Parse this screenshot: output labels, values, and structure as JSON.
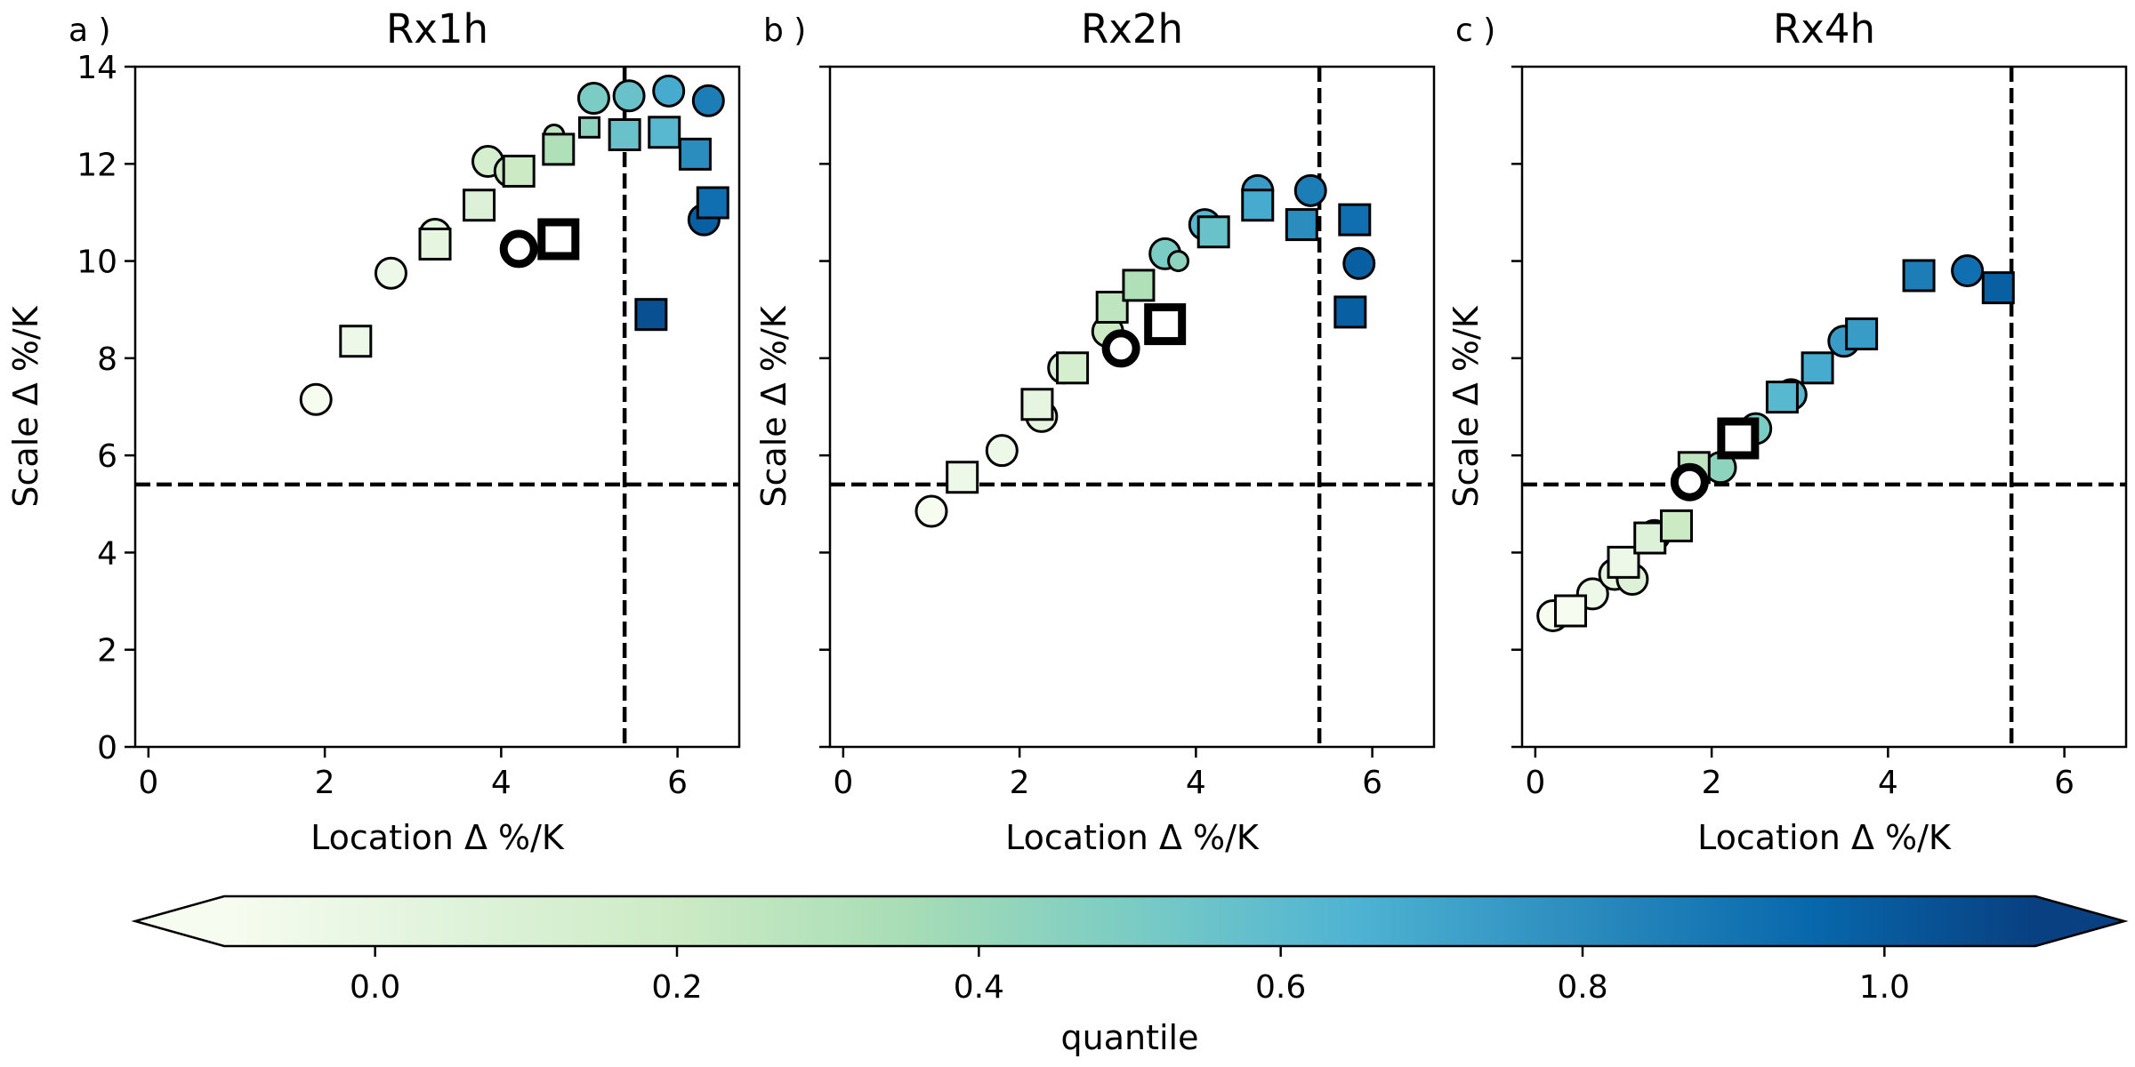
{
  "chart_data": [
    {
      "type": "scatter",
      "panel_label": "a )",
      "title": "Rx1h",
      "xlabel": "Location Δ %/K",
      "ylabel": "Scale Δ %/K",
      "xlim": [
        -0.15,
        6.7
      ],
      "ylim": [
        0,
        14
      ],
      "xticks": [
        "0",
        "2",
        "4",
        "6"
      ],
      "yticks": [
        "0",
        "2",
        "4",
        "6",
        "8",
        "10",
        "12",
        "14"
      ],
      "reference_lines": {
        "x": 5.4,
        "y": 5.4
      },
      "series": [
        {
          "marker": "circle",
          "points": [
            {
              "x": 1.9,
              "y": 7.15,
              "q": 0.0
            },
            {
              "x": 2.75,
              "y": 9.75,
              "q": 0.05
            },
            {
              "x": 3.25,
              "y": 10.55,
              "q": 0.1
            },
            {
              "x": 3.85,
              "y": 12.05,
              "q": 0.2
            },
            {
              "x": 4.1,
              "y": 11.85,
              "q": 0.25
            },
            {
              "x": 4.6,
              "y": 12.6,
              "q": 0.3,
              "size": "small"
            },
            {
              "x": 5.05,
              "y": 13.35,
              "q": 0.5
            },
            {
              "x": 5.45,
              "y": 13.4,
              "q": 0.55
            },
            {
              "x": 5.9,
              "y": 13.5,
              "q": 0.65
            },
            {
              "x": 6.35,
              "y": 13.3,
              "q": 0.8
            },
            {
              "x": 6.3,
              "y": 10.85,
              "q": 0.9
            }
          ]
        },
        {
          "marker": "square",
          "points": [
            {
              "x": 2.35,
              "y": 8.35,
              "q": 0.05
            },
            {
              "x": 3.25,
              "y": 10.35,
              "q": 0.1
            },
            {
              "x": 3.75,
              "y": 11.15,
              "q": 0.15
            },
            {
              "x": 4.2,
              "y": 11.85,
              "q": 0.25
            },
            {
              "x": 4.65,
              "y": 12.3,
              "q": 0.35
            },
            {
              "x": 5.0,
              "y": 12.75,
              "q": 0.45,
              "size": "small"
            },
            {
              "x": 5.4,
              "y": 12.6,
              "q": 0.55
            },
            {
              "x": 5.85,
              "y": 12.65,
              "q": 0.6
            },
            {
              "x": 6.2,
              "y": 12.2,
              "q": 0.75
            },
            {
              "x": 6.4,
              "y": 11.2,
              "q": 0.85
            },
            {
              "x": 5.7,
              "y": 8.9,
              "q": 0.95
            }
          ]
        },
        {
          "marker": "circle",
          "highlight": true,
          "points": [
            {
              "x": 4.2,
              "y": 10.25
            }
          ]
        },
        {
          "marker": "square",
          "highlight": true,
          "points": [
            {
              "x": 4.65,
              "y": 10.45
            }
          ]
        }
      ]
    },
    {
      "type": "scatter",
      "panel_label": "b )",
      "title": "Rx2h",
      "xlabel": "Location Δ %/K",
      "ylabel": "Scale Δ %/K",
      "xlim": [
        -0.15,
        6.7
      ],
      "ylim": [
        0,
        14
      ],
      "xticks": [
        "0",
        "2",
        "4",
        "6"
      ],
      "yticks": [
        "0",
        "2",
        "4",
        "6",
        "8",
        "10",
        "12",
        "14"
      ],
      "reference_lines": {
        "x": 5.4,
        "y": 5.4
      },
      "series": [
        {
          "marker": "circle",
          "points": [
            {
              "x": 1.0,
              "y": 4.85,
              "q": 0.0
            },
            {
              "x": 1.8,
              "y": 6.1,
              "q": 0.05
            },
            {
              "x": 2.25,
              "y": 6.8,
              "q": 0.1
            },
            {
              "x": 2.5,
              "y": 7.8,
              "q": 0.15
            },
            {
              "x": 3.0,
              "y": 8.55,
              "q": 0.25
            },
            {
              "x": 3.65,
              "y": 10.15,
              "q": 0.5
            },
            {
              "x": 3.8,
              "y": 10.0,
              "q": 0.45,
              "size": "small"
            },
            {
              "x": 4.1,
              "y": 10.75,
              "q": 0.6
            },
            {
              "x": 4.7,
              "y": 11.45,
              "q": 0.7
            },
            {
              "x": 5.3,
              "y": 11.45,
              "q": 0.8
            },
            {
              "x": 5.85,
              "y": 9.95,
              "q": 0.9
            }
          ]
        },
        {
          "marker": "square",
          "points": [
            {
              "x": 1.35,
              "y": 5.55,
              "q": 0.05
            },
            {
              "x": 2.2,
              "y": 7.05,
              "q": 0.1
            },
            {
              "x": 2.6,
              "y": 7.8,
              "q": 0.2
            },
            {
              "x": 3.05,
              "y": 9.05,
              "q": 0.3
            },
            {
              "x": 3.35,
              "y": 9.5,
              "q": 0.35
            },
            {
              "x": 4.2,
              "y": 10.6,
              "q": 0.55
            },
            {
              "x": 4.7,
              "y": 11.15,
              "q": 0.65
            },
            {
              "x": 5.2,
              "y": 10.75,
              "q": 0.75
            },
            {
              "x": 5.8,
              "y": 10.85,
              "q": 0.85
            },
            {
              "x": 5.75,
              "y": 8.95,
              "q": 0.9
            }
          ]
        },
        {
          "marker": "circle",
          "highlight": true,
          "points": [
            {
              "x": 3.15,
              "y": 8.2
            }
          ]
        },
        {
          "marker": "square",
          "highlight": true,
          "points": [
            {
              "x": 3.65,
              "y": 8.7
            }
          ]
        }
      ]
    },
    {
      "type": "scatter",
      "panel_label": "c )",
      "title": "Rx4h",
      "xlabel": "Location Δ %/K",
      "ylabel": "Scale Δ %/K",
      "xlim": [
        -0.15,
        6.7
      ],
      "ylim": [
        0,
        14
      ],
      "xticks": [
        "0",
        "2",
        "4",
        "6"
      ],
      "yticks": [
        "0",
        "2",
        "4",
        "6",
        "8",
        "10",
        "12",
        "14"
      ],
      "reference_lines": {
        "x": 5.4,
        "y": 5.4
      },
      "series": [
        {
          "marker": "circle",
          "points": [
            {
              "x": 0.2,
              "y": 2.7,
              "q": 0.0
            },
            {
              "x": 0.65,
              "y": 3.15,
              "q": 0.05
            },
            {
              "x": 0.9,
              "y": 3.55,
              "q": 0.1
            },
            {
              "x": 1.1,
              "y": 3.45,
              "q": 0.15
            },
            {
              "x": 1.35,
              "y": 4.35,
              "q": 0.2
            },
            {
              "x": 2.1,
              "y": 5.75,
              "q": 0.45
            },
            {
              "x": 2.5,
              "y": 6.55,
              "q": 0.5
            },
            {
              "x": 2.9,
              "y": 7.25,
              "q": 0.6
            },
            {
              "x": 3.5,
              "y": 8.35,
              "q": 0.7
            },
            {
              "x": 4.9,
              "y": 9.8,
              "q": 0.85
            }
          ]
        },
        {
          "marker": "square",
          "points": [
            {
              "x": 0.4,
              "y": 2.8,
              "q": 0.0
            },
            {
              "x": 1.0,
              "y": 3.8,
              "q": 0.05
            },
            {
              "x": 1.3,
              "y": 4.3,
              "q": 0.15
            },
            {
              "x": 1.6,
              "y": 4.55,
              "q": 0.25
            },
            {
              "x": 1.8,
              "y": 5.75,
              "q": 0.3
            },
            {
              "x": 2.3,
              "y": 6.25,
              "q": 0.4,
              "size": "small"
            },
            {
              "x": 2.8,
              "y": 7.2,
              "q": 0.6
            },
            {
              "x": 3.2,
              "y": 7.8,
              "q": 0.65
            },
            {
              "x": 3.7,
              "y": 8.5,
              "q": 0.7
            },
            {
              "x": 4.35,
              "y": 9.7,
              "q": 0.8
            },
            {
              "x": 5.25,
              "y": 9.45,
              "q": 0.9
            }
          ]
        },
        {
          "marker": "circle",
          "highlight": true,
          "points": [
            {
              "x": 1.75,
              "y": 5.45
            }
          ]
        },
        {
          "marker": "square",
          "highlight": true,
          "points": [
            {
              "x": 2.3,
              "y": 6.35
            }
          ]
        }
      ]
    }
  ],
  "colorbar": {
    "label": "quantile",
    "range": [
      -0.1,
      1.1
    ],
    "ticks": [
      "0.0",
      "0.2",
      "0.4",
      "0.6",
      "0.8",
      "1.0"
    ],
    "tick_values": [
      0.0,
      0.2,
      0.4,
      0.6,
      0.8,
      1.0
    ],
    "colormap": "GnBu",
    "colors": [
      "#f7fcf0",
      "#e0f3db",
      "#ccebc5",
      "#a8ddb5",
      "#7bccc4",
      "#4eb3d3",
      "#2b8cbe",
      "#0868ac",
      "#084081"
    ],
    "extend": "both"
  },
  "style": {
    "highlight_color": "#000000",
    "reference_line_color": "#000000"
  }
}
